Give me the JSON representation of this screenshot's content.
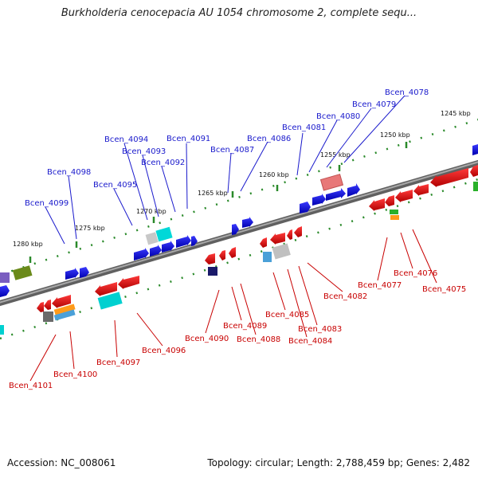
{
  "title": "Burkholderia cenocepacia AU 1054 chromosome 2, complete sequ...",
  "footer": {
    "accession": "Accession: NC_008061",
    "stats": "Topology: circular; Length: 2,788,459 bp; Genes: 2,482"
  },
  "ticks": [
    "1245 kbp",
    "1250 kbp",
    "1255 kbp",
    "1260 kbp",
    "1265 kbp",
    "1270 kbp",
    "1275 kbp",
    "1280 kbp"
  ],
  "genes_top": [
    "Bcen_4078",
    "Bcen_4079",
    "Bcen_4080",
    "Bcen_4081",
    "Bcen_4086",
    "Bcen_4087",
    "Bcen_4091",
    "Bcen_4092",
    "Bcen_4093",
    "Bcen_4094",
    "Bcen_4095",
    "Bcen_4098",
    "Bcen_4099"
  ],
  "genes_bottom": [
    "Bcen_4075",
    "Bcen_4076",
    "Bcen_4077",
    "Bcen_4082",
    "Bcen_4083",
    "Bcen_4084",
    "Bcen_4085",
    "Bcen_4088",
    "Bcen_4089",
    "Bcen_4090",
    "Bcen_4096",
    "Bcen_4097",
    "Bcen_4100",
    "Bcen_4101"
  ],
  "colors": {
    "forward": "#0000ee",
    "reverse": "#ee1111",
    "backbone": "#808080",
    "tick": "#2a8a2a",
    "label_forward": "#1a1acc",
    "label_reverse": "#c80000"
  }
}
